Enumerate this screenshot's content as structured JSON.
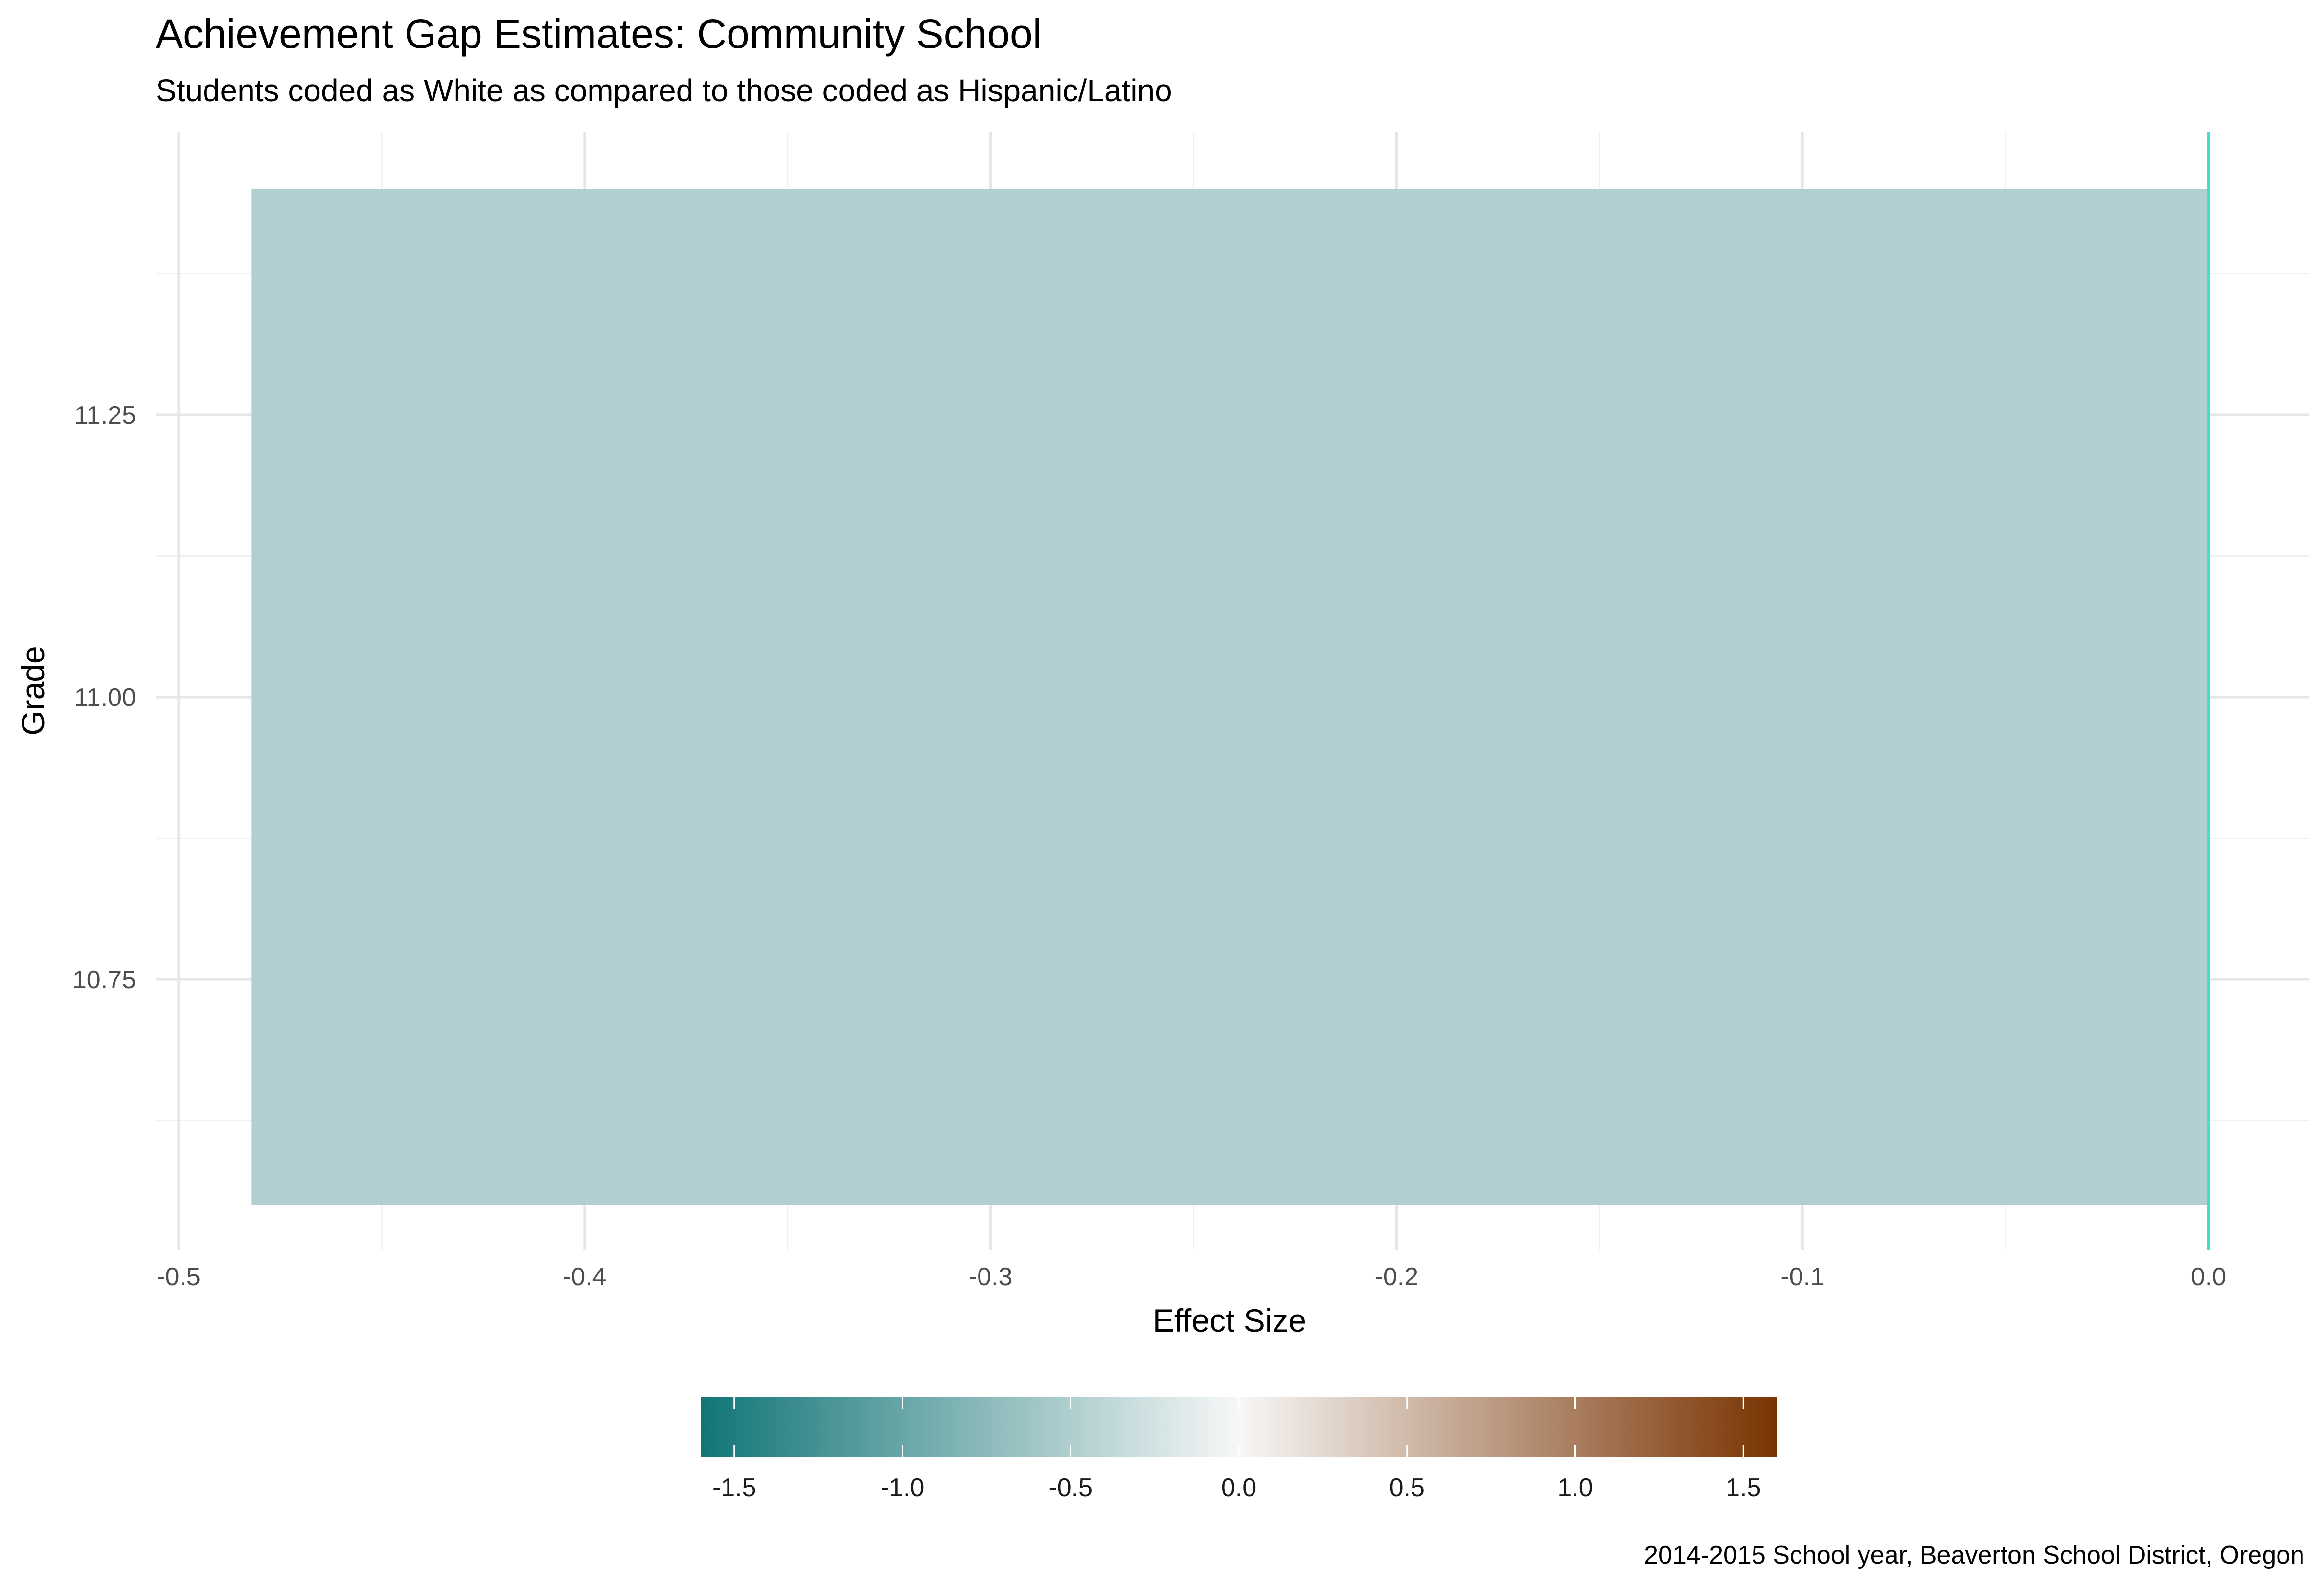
{
  "chart_data": {
    "type": "bar",
    "orientation": "horizontal",
    "title": "Achievement Gap Estimates: Community School",
    "subtitle": "Students coded as White as compared to those coded as Hispanic/Latino",
    "xlabel": "Effect Size",
    "ylabel": "Grade",
    "caption": "2014-2015 School year, Beaverton School District, Oregon",
    "xlim": [
      -0.5,
      0.0
    ],
    "ylim": [
      10.55,
      11.45
    ],
    "x_ticks": [
      -0.5,
      -0.4,
      -0.3,
      -0.2,
      -0.1,
      0.0
    ],
    "x_tick_labels": [
      "-0.5",
      "-0.4",
      "-0.3",
      "-0.2",
      "-0.1",
      "0.0"
    ],
    "y_ticks": [
      10.75,
      11.0,
      11.25
    ],
    "y_tick_labels": [
      "10.75",
      "11.00",
      "11.25"
    ],
    "grid": true,
    "bars": [
      {
        "grade": 11,
        "value": -0.482,
        "color": "#B1CFD1"
      }
    ],
    "reference_line": {
      "x": 0.0,
      "color": "#40E0D0"
    },
    "legend": {
      "type": "colorbar",
      "position": "bottom",
      "limits": [
        -1.6,
        1.6
      ],
      "ticks": [
        -1.5,
        -1.0,
        -0.5,
        0.0,
        0.5,
        1.0,
        1.5
      ],
      "tick_labels": [
        "-1.5",
        "-1.0",
        "-0.5",
        "0.0",
        "0.5",
        "1.0",
        "1.5"
      ],
      "colors": [
        "#127577",
        "#F7F7F7",
        "#7A3402"
      ]
    }
  }
}
